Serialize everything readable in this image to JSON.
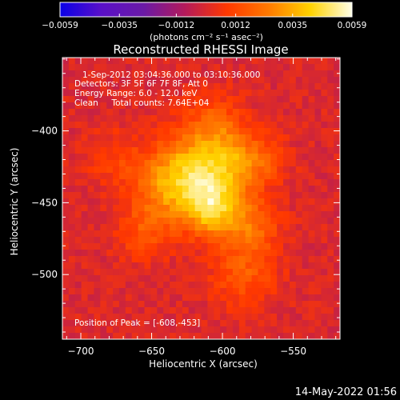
{
  "chart_data": {
    "type": "heatmap",
    "title": "Reconstructed RHESSI Image",
    "xlabel": "Heliocentric X (arcsec)",
    "ylabel": "Heliocentric Y (arcsec)",
    "xlim": [
      -713,
      -517
    ],
    "ylim": [
      -545,
      -349
    ],
    "x_ticks": [
      -700,
      -650,
      -600,
      -550
    ],
    "x_tick_labels": [
      "−700",
      "−650",
      "−600",
      "−550"
    ],
    "y_ticks": [
      -400,
      -450,
      -500
    ],
    "y_tick_labels": [
      "−400",
      "−450",
      "−500"
    ],
    "colorbar": {
      "range": [
        -0.0059,
        0.0059
      ],
      "ticks": [
        -0.0059,
        -0.0035,
        -0.0012,
        0.0012,
        0.0035,
        0.0059
      ],
      "tick_labels": [
        "−0.0059",
        "−0.0035",
        "−0.0012",
        "0.0012",
        "0.0035",
        "0.0059"
      ],
      "unit_label": "(photons cm⁻² s⁻¹ asec⁻²)",
      "colors": [
        "#0a00e8",
        "#5a10c8",
        "#6a1aa6",
        "#b41a5a",
        "#ff3800",
        "#ff7a00",
        "#ffd200",
        "#ffffe8"
      ]
    },
    "annotations": [
      "1-Sep-2012 03:04:36.000 to 03:10:36.000",
      "Detectors: 3F 5F 6F 7F 8F, Att 0",
      "Energy Range: 6.0 - 12.0 keV",
      "Clean     Total counts: 7.64E+04",
      "Position of Peak = [-608,-453]"
    ],
    "peak": {
      "x": -608,
      "y": -453
    },
    "background_level": 0.0,
    "components": [
      {
        "x": -608,
        "y": -453,
        "sigma": 14,
        "amp": 0.004
      },
      {
        "x": -620,
        "y": -425,
        "sigma": 18,
        "amp": 0.0032
      },
      {
        "x": -592,
        "y": -422,
        "sigma": 14,
        "amp": 0.0024
      },
      {
        "x": -640,
        "y": -440,
        "sigma": 16,
        "amp": 0.0022
      },
      {
        "x": -580,
        "y": -465,
        "sigma": 14,
        "amp": 0.002
      },
      {
        "x": -605,
        "y": -395,
        "sigma": 14,
        "amp": 0.0016
      },
      {
        "x": -655,
        "y": -470,
        "sigma": 14,
        "amp": 0.0014
      },
      {
        "x": -585,
        "y": -500,
        "sigma": 16,
        "amp": 0.0016
      },
      {
        "x": -570,
        "y": -420,
        "sigma": 12,
        "amp": 0.0012
      },
      {
        "x": -675,
        "y": -420,
        "sigma": 14,
        "amp": 0.001
      }
    ]
  },
  "footer": {
    "timestamp": "14-May-2022 01:56"
  }
}
